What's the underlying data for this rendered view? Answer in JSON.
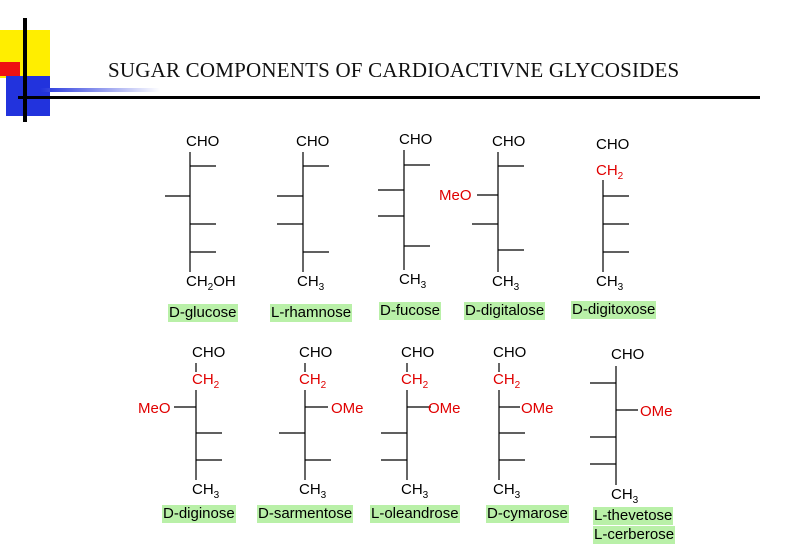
{
  "slide": {
    "title": "SUGAR COMPONENTS OF CARDIOACTIVNE GLYCOSIDES"
  },
  "colors": {
    "highlight": "#b9f0a8",
    "deoxy_red": "#e00000",
    "accent_yellow": "#ffee00",
    "accent_blue": "#2233dd",
    "accent_red": "#ee1111"
  },
  "sugars": [
    {
      "name": "D-glucose",
      "top": "CHO",
      "bottom": "CH2OH"
    },
    {
      "name": "L-rhamnose",
      "top": "CHO",
      "bottom": "CH3"
    },
    {
      "name": "D-fucose",
      "top": "CHO",
      "bottom": "CH3"
    },
    {
      "name": "D-digitalose",
      "top": "CHO",
      "bottom": "CH3",
      "substituent": "MeO"
    },
    {
      "name": "D-digitoxose",
      "top": "CHO",
      "deoxy": "CH2",
      "bottom": "CH3"
    },
    {
      "name": "D-diginose",
      "top": "CHO",
      "deoxy": "CH2",
      "bottom": "CH3",
      "substituent": "MeO"
    },
    {
      "name": "D-sarmentose",
      "top": "CHO",
      "deoxy": "CH2",
      "bottom": "CH3",
      "substituent": "OMe"
    },
    {
      "name": "L-oleandrose",
      "top": "CHO",
      "deoxy": "CH2",
      "bottom": "CH3",
      "substituent": "OMe"
    },
    {
      "name": "D-cymarose",
      "top": "CHO",
      "deoxy": "CH2",
      "bottom": "CH3",
      "substituent": "OMe"
    },
    {
      "name": "L-thevetose",
      "name2": "L-cerberose",
      "top": "CHO",
      "bottom": "CH3",
      "substituent": "OMe"
    }
  ]
}
